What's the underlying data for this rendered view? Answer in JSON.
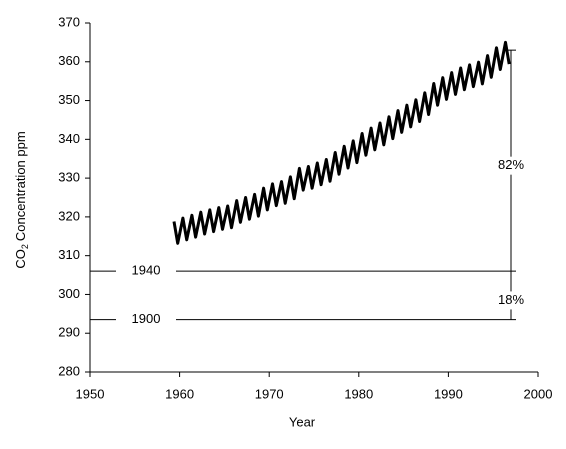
{
  "chart_data": {
    "type": "line",
    "ylabel_parts": [
      "CO",
      "2",
      "Concentration  ppm"
    ],
    "xlabel": "Year",
    "xlim": [
      1950,
      2000
    ],
    "xticks": [
      1950,
      1960,
      1970,
      1980,
      1990,
      2000
    ],
    "ylim": [
      280,
      370
    ],
    "yticks": [
      280,
      290,
      300,
      310,
      320,
      330,
      340,
      350,
      360,
      370
    ],
    "color": "#000000",
    "x": [
      1959.37,
      1959.79,
      1960.37,
      1960.79,
      1961.37,
      1961.79,
      1962.37,
      1962.79,
      1963.37,
      1963.79,
      1964.37,
      1964.79,
      1965.37,
      1965.79,
      1966.37,
      1966.79,
      1967.37,
      1967.79,
      1968.37,
      1968.79,
      1969.37,
      1969.79,
      1970.37,
      1970.79,
      1971.37,
      1971.79,
      1972.37,
      1972.79,
      1973.37,
      1973.79,
      1974.37,
      1974.79,
      1975.37,
      1975.79,
      1976.37,
      1976.79,
      1977.37,
      1977.79,
      1978.37,
      1978.79,
      1979.37,
      1979.79,
      1980.37,
      1980.79,
      1981.37,
      1981.79,
      1982.37,
      1982.79,
      1983.37,
      1983.79,
      1984.37,
      1984.79,
      1985.37,
      1985.79,
      1986.37,
      1986.79,
      1987.37,
      1987.79,
      1988.37,
      1988.79,
      1989.37,
      1989.79,
      1990.37,
      1990.79,
      1991.37,
      1991.79,
      1992.37,
      1992.79,
      1993.37,
      1993.79,
      1994.37,
      1994.79,
      1995.37,
      1995.79,
      1996.37,
      1996.79
    ],
    "values": [
      318.8,
      313.2,
      319.7,
      314.1,
      320.4,
      314.8,
      321.2,
      315.6,
      321.8,
      316.2,
      322.4,
      316.8,
      322.8,
      317.2,
      324.2,
      318.6,
      325.0,
      319.4,
      325.8,
      320.2,
      327.4,
      321.8,
      328.5,
      322.9,
      329.1,
      323.5,
      330.3,
      324.7,
      332.5,
      326.9,
      333.0,
      327.4,
      333.9,
      328.3,
      334.8,
      329.2,
      336.6,
      331.0,
      338.2,
      332.6,
      339.6,
      334.0,
      341.5,
      335.9,
      342.9,
      337.3,
      344.2,
      338.6,
      345.8,
      340.2,
      347.4,
      341.8,
      348.8,
      343.2,
      350.2,
      344.6,
      352.0,
      346.4,
      354.4,
      348.8,
      355.9,
      350.3,
      357.2,
      351.6,
      358.4,
      352.8,
      359.2,
      353.6,
      359.9,
      354.3,
      361.6,
      356.0,
      363.6,
      358.0,
      365.0,
      359.4
    ],
    "reference_lines": [
      {
        "label": "1940",
        "value": 306
      },
      {
        "label": "1900",
        "value": 293.5
      }
    ],
    "bracket_top": 363,
    "percent_labels": [
      {
        "value": 82,
        "label": "82%"
      },
      {
        "value": 18,
        "label": "18%"
      }
    ]
  }
}
